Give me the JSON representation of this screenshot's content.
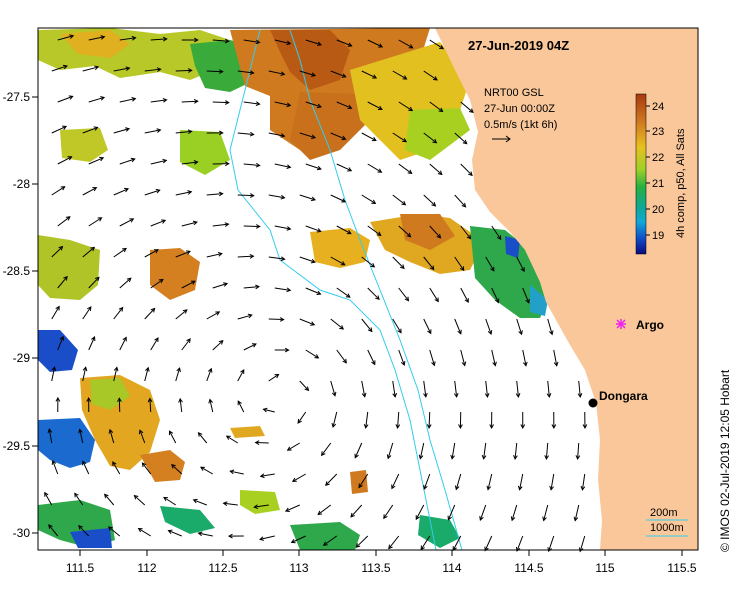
{
  "map": {
    "title": "27-Jun-2019 04Z",
    "product": {
      "line1": "NRT00 GSL",
      "line2": "27-Jun 00:00Z",
      "line3": "0.5m/s (1kt 6h)"
    },
    "lon_ticks": [
      "111.5",
      "112",
      "112.5",
      "113",
      "113.5",
      "114",
      "114.5",
      "115",
      "115.5"
    ],
    "lat_ticks": [
      "-27.5",
      "-28",
      "-28.5",
      "-29",
      "-29.5",
      "-30"
    ],
    "places": {
      "argo": "Argo",
      "dongara": "Dongara"
    },
    "colorbar": {
      "ticks": [
        "24",
        "23",
        "22",
        "21",
        "20",
        "19"
      ],
      "label": "4h comp, p50, All Sats"
    },
    "isobaths": {
      "shallow": "200m",
      "deep": "1000m"
    },
    "credit": "© IMOS 02-Jul-2019 12:05 Hobart",
    "colors": {
      "land": "#f9c79a",
      "isobath": "#33ccee",
      "argo": "#ee22ee",
      "sst_warm": "#c86a18",
      "sst_mid": "#e0b020",
      "sst_cool": "#3aaa3a",
      "sst_cold": "#1a4ec8"
    }
  }
}
